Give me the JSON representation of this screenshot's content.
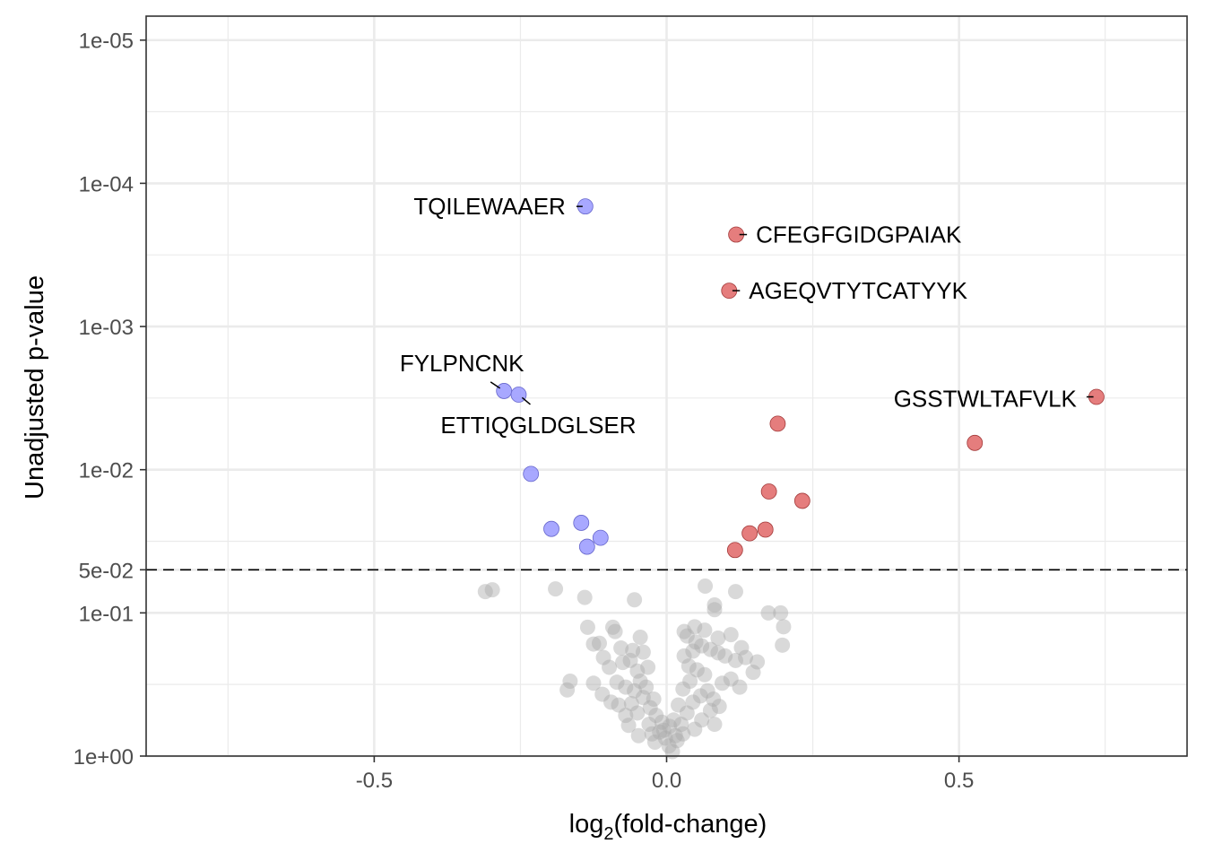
{
  "chart_data": {
    "type": "scatter",
    "xlabel": "log",
    "xlabel_sub": "2",
    "xlabel_tail": "(fold-change)",
    "ylabel": "Unadjusted p-value",
    "x_scale": "linear",
    "y_scale": "reversed-log10",
    "xlim": [
      -0.89,
      0.89
    ],
    "ylim": [
      1,
      6.8e-06
    ],
    "x_ticks": [
      {
        "value": -0.5,
        "label": "-0.5"
      },
      {
        "value": 0.0,
        "label": "0.0"
      },
      {
        "value": 0.5,
        "label": "0.5"
      }
    ],
    "y_ticks": [
      {
        "value": 1e-05,
        "label": "1e-05"
      },
      {
        "value": 0.0001,
        "label": "1e-04"
      },
      {
        "value": 0.001,
        "label": "1e-03"
      },
      {
        "value": 0.01,
        "label": "1e-02"
      },
      {
        "value": 0.05,
        "label": "5e-02"
      },
      {
        "value": 0.1,
        "label": "1e-01"
      },
      {
        "value": 1,
        "label": "1e+00"
      }
    ],
    "x_minor_grid": [
      -0.75,
      -0.25,
      0.25,
      0.75
    ],
    "y_minor_grid": [
      3.16e-05,
      0.000316,
      0.00316,
      0.0316,
      0.316
    ],
    "threshold": {
      "p": 0.05,
      "style": "dashed"
    },
    "grid": true,
    "colors": {
      "up": "#e06666",
      "down": "#9999ff",
      "ns": "#aaaaaa",
      "grid": "#ebebeb",
      "frame": "#333333"
    },
    "series": [
      {
        "group": "down",
        "points": [
          {
            "x": -0.139,
            "y": 0.000145
          },
          {
            "x": -0.278,
            "y": 0.00282
          },
          {
            "x": -0.253,
            "y": 0.00299
          },
          {
            "x": -0.232,
            "y": 0.0107
          },
          {
            "x": -0.197,
            "y": 0.0259
          },
          {
            "x": -0.146,
            "y": 0.0235
          },
          {
            "x": -0.113,
            "y": 0.0299
          },
          {
            "x": -0.136,
            "y": 0.0345
          }
        ]
      },
      {
        "group": "up",
        "points": [
          {
            "x": 0.119,
            "y": 0.000228
          },
          {
            "x": 0.107,
            "y": 0.000562
          },
          {
            "x": 0.735,
            "y": 0.0031
          },
          {
            "x": 0.19,
            "y": 0.00477
          },
          {
            "x": 0.527,
            "y": 0.0065
          },
          {
            "x": 0.175,
            "y": 0.0142
          },
          {
            "x": 0.232,
            "y": 0.0165
          },
          {
            "x": 0.169,
            "y": 0.0262
          },
          {
            "x": 0.142,
            "y": 0.0278
          },
          {
            "x": 0.117,
            "y": 0.0364
          }
        ]
      },
      {
        "group": "ns",
        "points": [
          {
            "x": -0.31,
            "y": 0.071
          },
          {
            "x": -0.298,
            "y": 0.069
          },
          {
            "x": -0.19,
            "y": 0.068
          },
          {
            "x": -0.14,
            "y": 0.078
          },
          {
            "x": -0.055,
            "y": 0.081
          },
          {
            "x": 0.066,
            "y": 0.065
          },
          {
            "x": 0.118,
            "y": 0.071
          },
          {
            "x": 0.082,
            "y": 0.088
          },
          {
            "x": 0.082,
            "y": 0.095
          },
          {
            "x": 0.174,
            "y": 0.1
          },
          {
            "x": 0.195,
            "y": 0.1
          },
          {
            "x": 0.2,
            "y": 0.125
          },
          {
            "x": 0.198,
            "y": 0.168
          },
          {
            "x": -0.135,
            "y": 0.126
          },
          {
            "x": -0.092,
            "y": 0.126
          },
          {
            "x": -0.088,
            "y": 0.135
          },
          {
            "x": -0.045,
            "y": 0.148
          },
          {
            "x": -0.115,
            "y": 0.163
          },
          {
            "x": -0.125,
            "y": 0.165
          },
          {
            "x": -0.078,
            "y": 0.176
          },
          {
            "x": -0.058,
            "y": 0.183
          },
          {
            "x": -0.04,
            "y": 0.188
          },
          {
            "x": -0.062,
            "y": 0.215
          },
          {
            "x": -0.075,
            "y": 0.222
          },
          {
            "x": -0.032,
            "y": 0.24
          },
          {
            "x": -0.05,
            "y": 0.255
          },
          {
            "x": -0.165,
            "y": 0.3
          },
          {
            "x": -0.17,
            "y": 0.345
          },
          {
            "x": -0.125,
            "y": 0.31
          },
          {
            "x": -0.085,
            "y": 0.305
          },
          {
            "x": -0.07,
            "y": 0.33
          },
          {
            "x": -0.055,
            "y": 0.35
          },
          {
            "x": -0.095,
            "y": 0.42
          },
          {
            "x": -0.082,
            "y": 0.44
          },
          {
            "x": -0.06,
            "y": 0.43
          },
          {
            "x": -0.04,
            "y": 0.39
          },
          {
            "x": -0.028,
            "y": 0.46
          },
          {
            "x": -0.018,
            "y": 0.52
          },
          {
            "x": -0.008,
            "y": 0.58
          },
          {
            "x": -0.012,
            "y": 0.68
          },
          {
            "x": -0.002,
            "y": 0.75
          },
          {
            "x": 0.004,
            "y": 0.85
          },
          {
            "x": 0.01,
            "y": 0.93
          },
          {
            "x": -0.02,
            "y": 0.8
          },
          {
            "x": -0.03,
            "y": 0.6
          },
          {
            "x": -0.05,
            "y": 0.5
          },
          {
            "x": -0.07,
            "y": 0.52
          },
          {
            "x": -0.025,
            "y": 0.7
          },
          {
            "x": 0.015,
            "y": 0.72
          },
          {
            "x": 0.025,
            "y": 0.6
          },
          {
            "x": 0.035,
            "y": 0.5
          },
          {
            "x": 0.045,
            "y": 0.42
          },
          {
            "x": 0.058,
            "y": 0.38
          },
          {
            "x": 0.07,
            "y": 0.35
          },
          {
            "x": 0.08,
            "y": 0.4
          },
          {
            "x": 0.09,
            "y": 0.45
          },
          {
            "x": 0.095,
            "y": 0.31
          },
          {
            "x": 0.11,
            "y": 0.29
          },
          {
            "x": 0.125,
            "y": 0.33
          },
          {
            "x": 0.148,
            "y": 0.26
          },
          {
            "x": 0.155,
            "y": 0.22
          },
          {
            "x": 0.135,
            "y": 0.205
          },
          {
            "x": 0.118,
            "y": 0.215
          },
          {
            "x": 0.1,
            "y": 0.2
          },
          {
            "x": 0.088,
            "y": 0.19
          },
          {
            "x": 0.075,
            "y": 0.18
          },
          {
            "x": 0.06,
            "y": 0.17
          },
          {
            "x": 0.045,
            "y": 0.185
          },
          {
            "x": 0.03,
            "y": 0.2
          },
          {
            "x": 0.038,
            "y": 0.235
          },
          {
            "x": 0.052,
            "y": 0.25
          },
          {
            "x": 0.065,
            "y": 0.27
          },
          {
            "x": 0.04,
            "y": 0.3
          },
          {
            "x": 0.028,
            "y": 0.34
          },
          {
            "x": 0.02,
            "y": 0.44
          },
          {
            "x": 0.012,
            "y": 0.56
          },
          {
            "x": 0.005,
            "y": 0.62
          },
          {
            "x": -0.005,
            "y": 0.66
          },
          {
            "x": 0.018,
            "y": 0.78
          },
          {
            "x": 0.028,
            "y": 0.7
          },
          {
            "x": -0.045,
            "y": 0.3
          },
          {
            "x": -0.035,
            "y": 0.33
          },
          {
            "x": -0.022,
            "y": 0.4
          },
          {
            "x": 0.035,
            "y": 0.145
          },
          {
            "x": 0.05,
            "y": 0.16
          },
          {
            "x": 0.048,
            "y": 0.125
          },
          {
            "x": 0.03,
            "y": 0.135
          },
          {
            "x": 0.065,
            "y": 0.132
          },
          {
            "x": 0.088,
            "y": 0.15
          },
          {
            "x": 0.11,
            "y": 0.142
          },
          {
            "x": 0.128,
            "y": 0.175
          },
          {
            "x": -0.108,
            "y": 0.205
          },
          {
            "x": -0.098,
            "y": 0.24
          },
          {
            "x": -0.11,
            "y": 0.37
          },
          {
            "x": -0.065,
            "y": 0.61
          },
          {
            "x": -0.048,
            "y": 0.72
          },
          {
            "x": 0.06,
            "y": 0.56
          },
          {
            "x": 0.075,
            "y": 0.48
          },
          {
            "x": 0.082,
            "y": 0.6
          },
          {
            "x": 0.048,
            "y": 0.65
          }
        ]
      }
    ],
    "annotations": [
      {
        "text": "TQILEWAAER",
        "x": -0.139,
        "y": 0.000145,
        "anchor": "end",
        "dx": -22,
        "dy": 0,
        "lx2": -10,
        "ly2": 0
      },
      {
        "text": "CFEGFGIDGPAIAK",
        "x": 0.119,
        "y": 0.000228,
        "anchor": "start",
        "dx": 22,
        "dy": 0,
        "lx2": 12,
        "ly2": 0
      },
      {
        "text": "AGEQVTYTCATYYK",
        "x": 0.107,
        "y": 0.000562,
        "anchor": "start",
        "dx": 22,
        "dy": 0,
        "lx2": 12,
        "ly2": 0
      },
      {
        "text": "FYLPNCNK",
        "x": -0.278,
        "y": 0.00282,
        "anchor": "middle",
        "dx": -47,
        "dy": -31,
        "lx2": -15,
        "ly2": -10
      },
      {
        "text": "ETTIQGLDGLSER",
        "x": -0.253,
        "y": 0.00299,
        "anchor": "middle",
        "dx": 22,
        "dy": 34,
        "lx2": 13,
        "ly2": 11
      },
      {
        "text": "GSSTWLTAFVLK",
        "x": 0.735,
        "y": 0.0031,
        "anchor": "end",
        "dx": -22,
        "dy": 2,
        "lx2": -11,
        "ly2": 0
      }
    ]
  }
}
